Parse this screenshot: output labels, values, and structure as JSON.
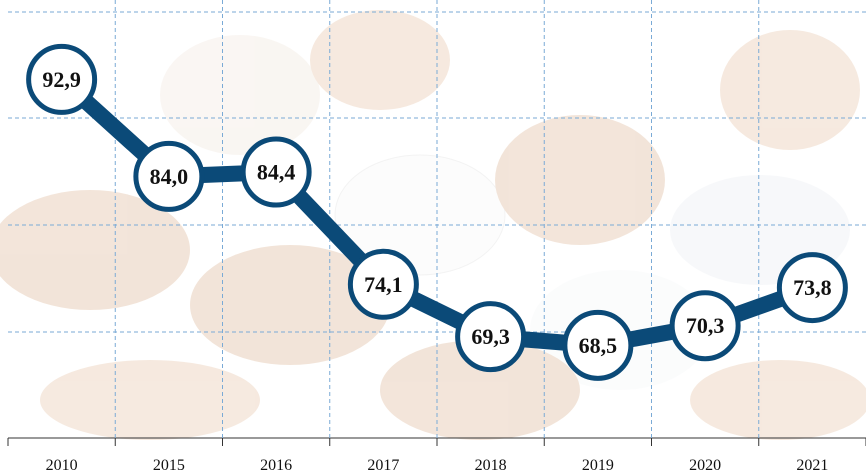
{
  "chart_data": {
    "type": "line",
    "categories": [
      "2010",
      "2015",
      "2016",
      "2017",
      "2018",
      "2019",
      "2020",
      "2021"
    ],
    "values": [
      92.9,
      84.0,
      84.4,
      74.1,
      69.3,
      68.5,
      70.3,
      73.8
    ],
    "value_labels": [
      "92,9",
      "84,0",
      "84,4",
      "74,1",
      "69,3",
      "68,5",
      "70,3",
      "73,8"
    ],
    "color": "#0b4a78",
    "ylim": [
      60,
      100
    ],
    "grid": true
  }
}
